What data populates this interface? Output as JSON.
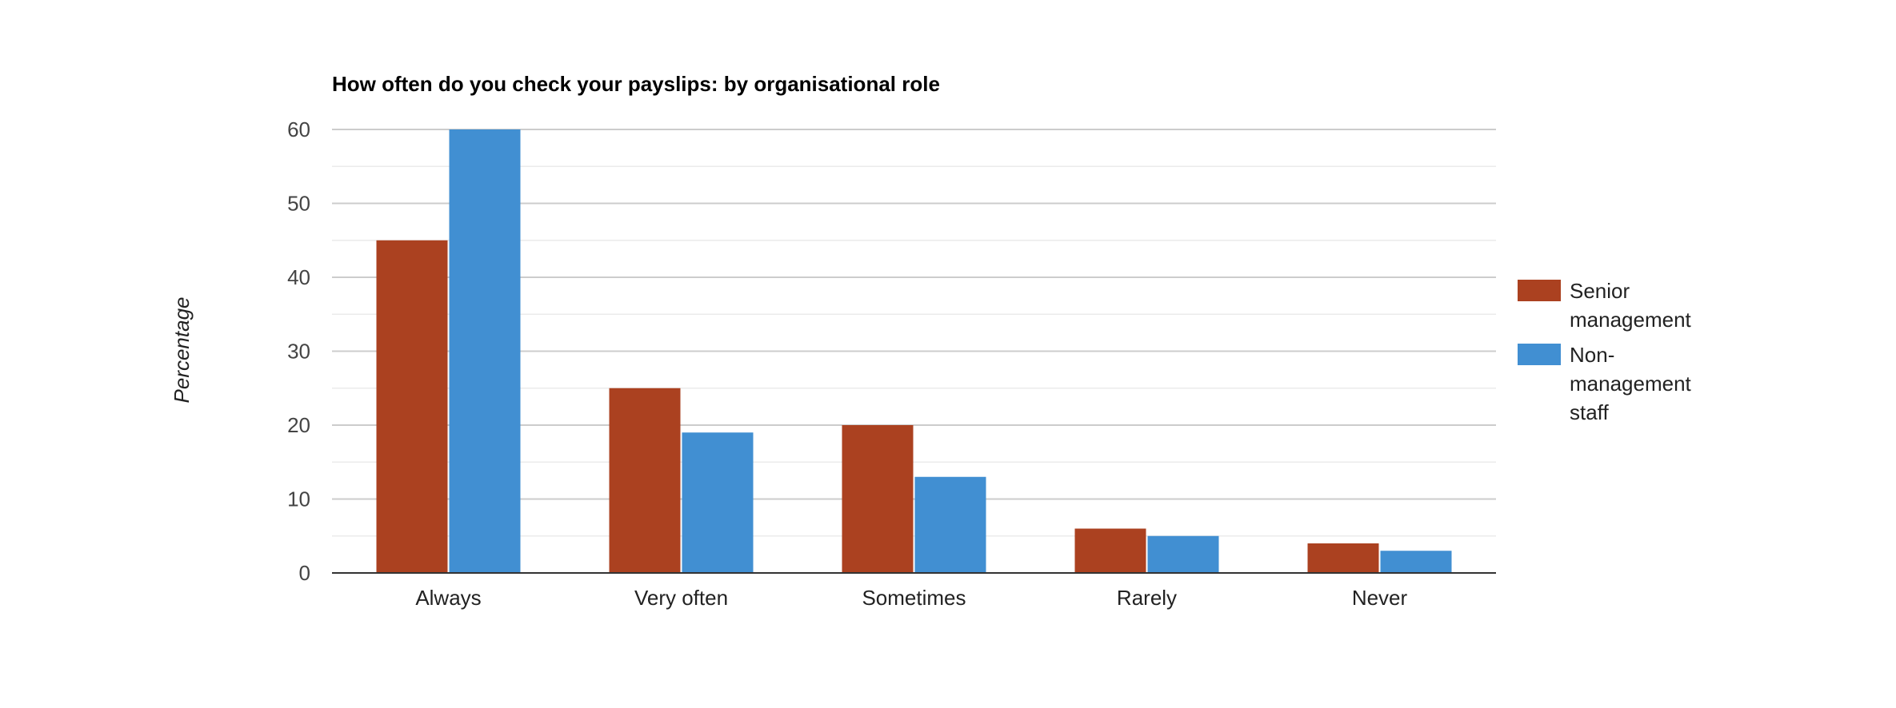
{
  "chart_data": {
    "type": "bar",
    "title": "How often do you check your payslips: by organisational role",
    "xlabel": "",
    "ylabel": "Percentage",
    "ylim": [
      0,
      60
    ],
    "yticks": [
      0,
      10,
      20,
      30,
      40,
      50,
      60
    ],
    "grid": true,
    "legend_position": "right",
    "categories": [
      "Always",
      "Very often",
      "Sometimes",
      "Rarely",
      "Never"
    ],
    "series": [
      {
        "name": "Senior management",
        "legend_lines": [
          "Senior",
          "management"
        ],
        "color": "#ab4120",
        "values": [
          45,
          25,
          20,
          6,
          4
        ]
      },
      {
        "name": "Non-management staff",
        "legend_lines": [
          "Non-",
          "management",
          "staff"
        ],
        "color": "#418fd2",
        "values": [
          60,
          19,
          13,
          5,
          3
        ]
      }
    ]
  }
}
